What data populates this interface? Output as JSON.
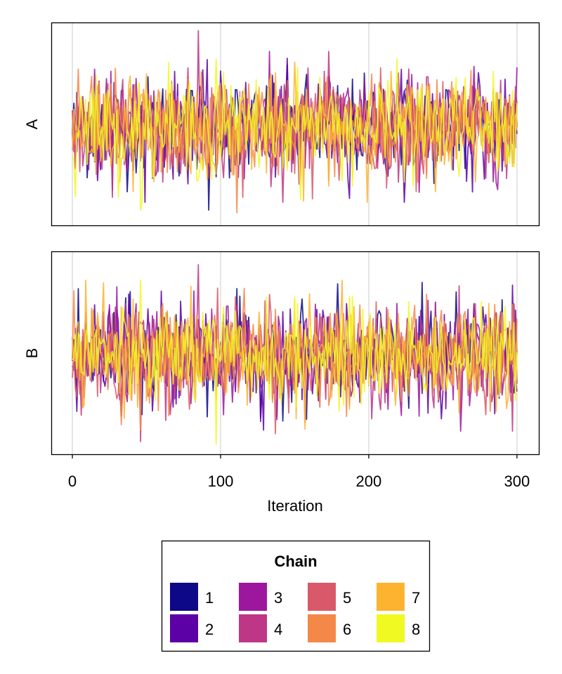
{
  "chart_data": {
    "type": "line",
    "title": "",
    "xlabel": "Iteration",
    "xlim": [
      -14,
      315
    ],
    "x_ticks": [
      0,
      100,
      200,
      300
    ],
    "x_tick_labels": [
      "0",
      "100",
      "200",
      "300"
    ],
    "grid": true,
    "legend": {
      "title": "Chain",
      "placement": "bottom-center",
      "entries": [
        {
          "label": "1",
          "color": "#0d0887"
        },
        {
          "label": "2",
          "color": "#5c01a6"
        },
        {
          "label": "3",
          "color": "#9c179e"
        },
        {
          "label": "4",
          "color": "#bd3786"
        },
        {
          "label": "5",
          "color": "#d9596a"
        },
        {
          "label": "6",
          "color": "#f48849"
        },
        {
          "label": "7",
          "color": "#fdb32f"
        },
        {
          "label": "8",
          "color": "#f0f921"
        }
      ]
    },
    "panels": [
      {
        "ylabel": "A",
        "ylim": [
          -3.8,
          4.0
        ],
        "series_summary": "8 chains, 301 iterations each (0-300), values fluctuating around 0 with range approximately -3.3 to 3.7",
        "extremes": [
          {
            "chain": "4",
            "x": 85,
            "y": 3.7
          },
          {
            "chain": "8",
            "x": 97,
            "y": 2.6
          },
          {
            "chain": "8",
            "x": 46,
            "y": -3.2
          },
          {
            "chain": "1",
            "x": 92,
            "y": -3.2
          },
          {
            "chain": "6",
            "x": 111,
            "y": -3.3
          }
        ]
      },
      {
        "ylabel": "B",
        "ylim": [
          -3.8,
          4.0
        ],
        "series_summary": "8 chains, 301 iterations each (0-300), values fluctuating around 0 with range approximately -3.4 to 3.5",
        "extremes": [
          {
            "chain": "4",
            "x": 85,
            "y": 3.5
          },
          {
            "chain": "7",
            "x": 21,
            "y": 2.8
          },
          {
            "chain": "4",
            "x": 46,
            "y": -3.3
          },
          {
            "chain": "8",
            "x": 97,
            "y": -3.4
          },
          {
            "chain": "5",
            "x": 137,
            "y": -3.0
          }
        ]
      }
    ]
  }
}
